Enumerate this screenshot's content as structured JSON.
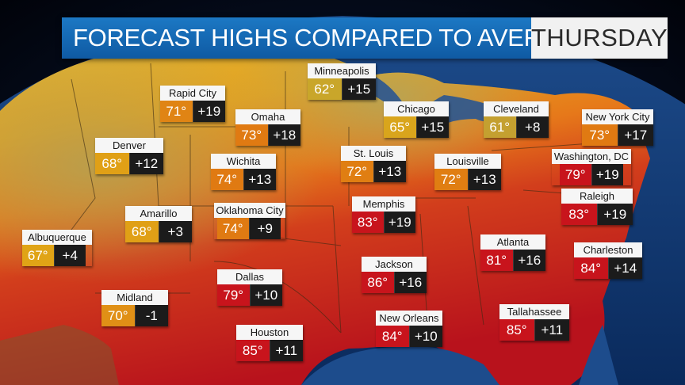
{
  "header": {
    "title": "FORECAST HIGHS COMPARED TO AVERAGE",
    "day": "THURSDAY"
  },
  "colors": {
    "title_blue": "#1668b8",
    "mild_yellow": "#d8a41e",
    "warm_orange": "#e07d14",
    "hot_red": "#c8141c",
    "departure_black": "#1b1b1b"
  },
  "cities": [
    {
      "name": "Minneapolis",
      "temp": "62°",
      "departure": "+15",
      "color": "#c9a62a"
    },
    {
      "name": "Rapid City",
      "temp": "71°",
      "departure": "+19",
      "color": "#e08414"
    },
    {
      "name": "Omaha",
      "temp": "73°",
      "departure": "+18",
      "color": "#e07a12"
    },
    {
      "name": "Chicago",
      "temp": "65°",
      "departure": "+15",
      "color": "#d9a51c"
    },
    {
      "name": "Cleveland",
      "temp": "61°",
      "departure": "+8",
      "color": "#c4a030"
    },
    {
      "name": "New York City",
      "temp": "73°",
      "departure": "+17",
      "color": "#e07a12"
    },
    {
      "name": "Denver",
      "temp": "68°",
      "departure": "+12",
      "color": "#e0a016"
    },
    {
      "name": "Wichita",
      "temp": "74°",
      "departure": "+13",
      "color": "#e07a12"
    },
    {
      "name": "St. Louis",
      "temp": "72°",
      "departure": "+13",
      "color": "#e07e12"
    },
    {
      "name": "Louisville",
      "temp": "72°",
      "departure": "+13",
      "color": "#e07e12"
    },
    {
      "name": "Washington, DC",
      "temp": "79°",
      "departure": "+19",
      "color": "#c8141c"
    },
    {
      "name": "Amarillo",
      "temp": "68°",
      "departure": "+3",
      "color": "#e0a016"
    },
    {
      "name": "Oklahoma City",
      "temp": "74°",
      "departure": "+9",
      "color": "#e07a12"
    },
    {
      "name": "Memphis",
      "temp": "83°",
      "departure": "+19",
      "color": "#c8141c"
    },
    {
      "name": "Raleigh",
      "temp": "83°",
      "departure": "+19",
      "color": "#c8141c"
    },
    {
      "name": "Albuquerque",
      "temp": "67°",
      "departure": "+4",
      "color": "#e0a416"
    },
    {
      "name": "Atlanta",
      "temp": "81°",
      "departure": "+16",
      "color": "#c8141c"
    },
    {
      "name": "Charleston",
      "temp": "84°",
      "departure": "+14",
      "color": "#c8141c"
    },
    {
      "name": "Jackson",
      "temp": "86°",
      "departure": "+16",
      "color": "#c8141c"
    },
    {
      "name": "Dallas",
      "temp": "79°",
      "departure": "+10",
      "color": "#c8141c"
    },
    {
      "name": "Midland",
      "temp": "70°",
      "departure": "-1",
      "color": "#e09016"
    },
    {
      "name": "New Orleans",
      "temp": "84°",
      "departure": "+10",
      "color": "#c8141c"
    },
    {
      "name": "Tallahassee",
      "temp": "85°",
      "departure": "+11",
      "color": "#c8141c"
    },
    {
      "name": "Houston",
      "temp": "85°",
      "departure": "+11",
      "color": "#c8141c"
    }
  ]
}
